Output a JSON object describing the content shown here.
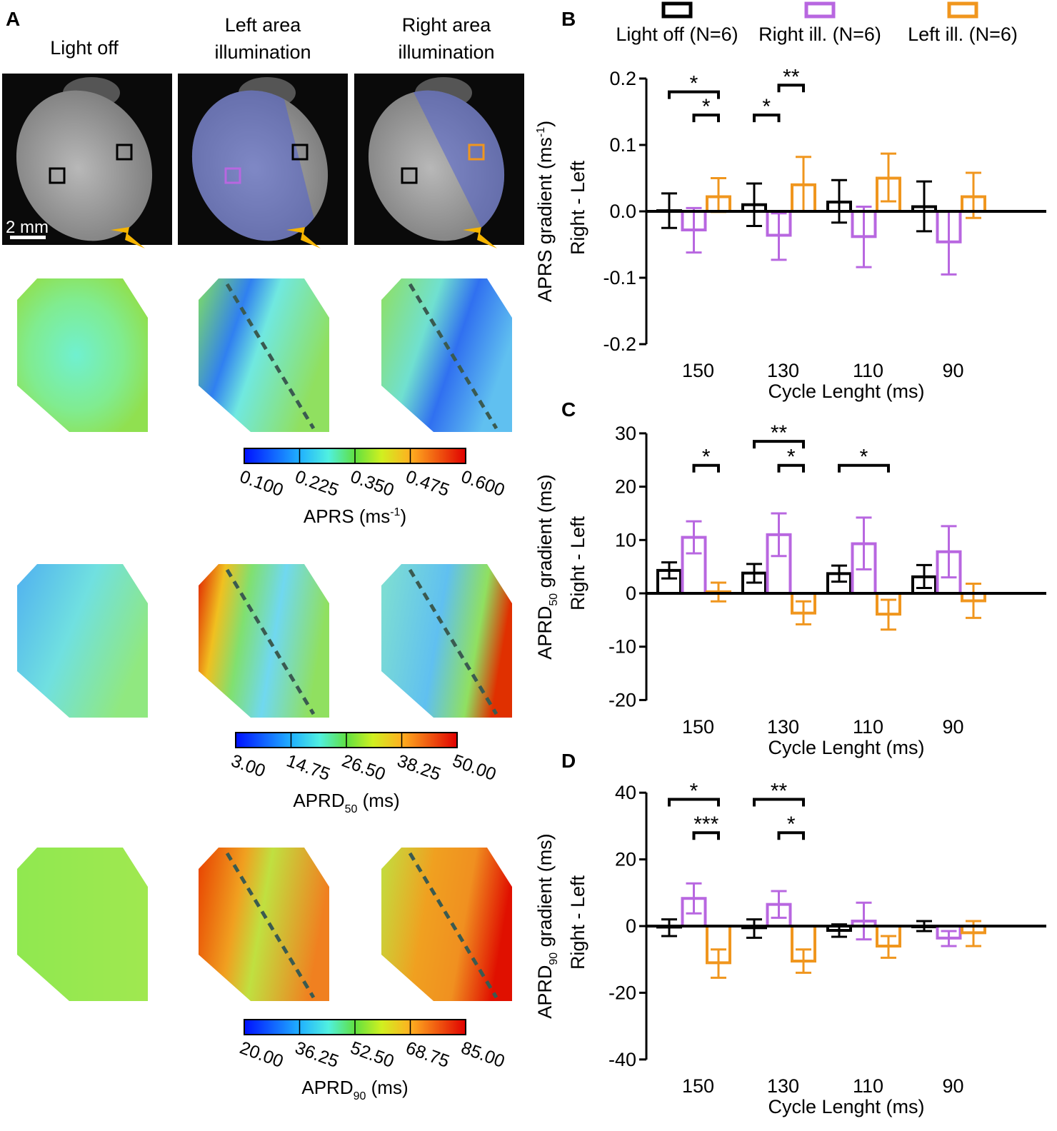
{
  "panel_a": {
    "letter": "A",
    "columns": [
      {
        "title_lines": [
          "Light off"
        ]
      },
      {
        "title_lines": [
          "Left area",
          "illumination"
        ]
      },
      {
        "title_lines": [
          "Right area",
          "illumination"
        ]
      }
    ],
    "scale_bar": "2 mm",
    "colorbars": [
      {
        "ticks": [
          "0.100",
          "0.225",
          "0.350",
          "0.475",
          "0.600"
        ],
        "label": "APRS (ms",
        "label_sup": "-1",
        "label_end": ")"
      },
      {
        "ticks": [
          "3.00",
          "14.75",
          "26.50",
          "38.25",
          "50.00"
        ],
        "label": "APRD",
        "label_sub": "50",
        "label_end": " (ms)"
      },
      {
        "ticks": [
          "20.00",
          "36.25",
          "52.50",
          "68.75",
          "85.00"
        ],
        "label": "APRD",
        "label_sub": "90",
        "label_end": " (ms)"
      }
    ]
  },
  "colors": {
    "light_off": "#000000",
    "right_ill": "#b867e0",
    "left_ill": "#f0961e",
    "dots": "#aaaaaa"
  },
  "legend": [
    "Light off (N=6)",
    "Right ill. (N=6)",
    "Left ill. (N=6)"
  ],
  "chart_data": [
    {
      "panel": "B",
      "type": "bar",
      "categories": [
        "150",
        "130",
        "110",
        "90"
      ],
      "xlabel": "Cycle Lenght (ms)",
      "ylabel_lines": [
        "APRS gradient (ms",
        "Right - Left"
      ],
      "ylabel_sup": "-1",
      "ylabel_end": ")",
      "ylim": [
        -0.2,
        0.2
      ],
      "yticks": [
        "0.2",
        "0.1",
        "0.0",
        "-0.1",
        "-0.2"
      ],
      "ytick_values": [
        0.2,
        0.1,
        0.0,
        -0.1,
        -0.2
      ],
      "series": [
        {
          "name": "Light off (N=6)",
          "values": [
            0.001,
            0.01,
            0.014,
            0.007
          ],
          "err_high": [
            0.027,
            0.042,
            0.047,
            0.045
          ],
          "err_low": [
            -0.025,
            -0.022,
            -0.017,
            -0.03
          ]
        },
        {
          "name": "Right ill. (N=6)",
          "values": [
            -0.028,
            -0.036,
            -0.038,
            -0.046
          ],
          "err_high": [
            0.005,
            -0.003,
            0.007,
            0.0
          ],
          "err_low": [
            -0.062,
            -0.073,
            -0.084,
            -0.095
          ]
        },
        {
          "name": "Left ill. (N=6)",
          "values": [
            0.022,
            0.04,
            0.05,
            0.022
          ],
          "err_high": [
            0.05,
            0.082,
            0.087,
            0.058
          ],
          "err_low": [
            -0.001,
            0.0,
            0.015,
            -0.01
          ]
        }
      ],
      "significance": [
        {
          "category": 0,
          "from": 0,
          "to": 2,
          "level": 0.18,
          "label": "*"
        },
        {
          "category": 0,
          "from": 1,
          "to": 2,
          "level": 0.145,
          "label": "*"
        },
        {
          "category": 1,
          "from": 0,
          "to": 1,
          "level": 0.145,
          "label": "*"
        },
        {
          "category": 1,
          "from": 1,
          "to": 2,
          "level": 0.19,
          "label": "**"
        }
      ]
    },
    {
      "panel": "C",
      "type": "bar",
      "categories": [
        "150",
        "130",
        "110",
        "90"
      ],
      "xlabel": "Cycle Lenght (ms)",
      "ylabel_lines": [
        "APRD",
        "Right - Left"
      ],
      "ylabel_sub": "50",
      "ylabel_end": " gradient (ms)",
      "ylim": [
        -20,
        30
      ],
      "yticks": [
        "30",
        "20",
        "10",
        "0",
        "-10",
        "-20"
      ],
      "ytick_values": [
        30,
        20,
        10,
        0,
        -10,
        -20
      ],
      "series": [
        {
          "name": "Light off (N=6)",
          "values": [
            4.3,
            3.8,
            3.7,
            3.1
          ],
          "err_high": [
            5.8,
            5.5,
            5.2,
            5.3
          ],
          "err_low": [
            2.8,
            2.0,
            2.2,
            1.0
          ]
        },
        {
          "name": "Right ill. (N=6)",
          "values": [
            10.5,
            11.0,
            9.3,
            7.8
          ],
          "err_high": [
            13.5,
            15.0,
            14.2,
            12.6
          ],
          "err_low": [
            7.5,
            7.0,
            4.5,
            3.0
          ]
        },
        {
          "name": "Left ill. (N=6)",
          "values": [
            0.3,
            -3.7,
            -3.9,
            -1.4
          ],
          "err_high": [
            2.0,
            -1.5,
            -1.2,
            1.8
          ],
          "err_low": [
            -1.5,
            -5.8,
            -6.8,
            -4.6
          ]
        }
      ],
      "significance": [
        {
          "category": 0,
          "from": 1,
          "to": 2,
          "level": 24,
          "label": "*"
        },
        {
          "category": 1,
          "from": 0,
          "to": 2,
          "level": 28.5,
          "label": "**"
        },
        {
          "category": 1,
          "from": 1,
          "to": 2,
          "level": 24,
          "label": "*"
        },
        {
          "category": 2,
          "from": 0,
          "to": 2,
          "level": 24,
          "label": "*"
        }
      ]
    },
    {
      "panel": "D",
      "type": "bar",
      "categories": [
        "150",
        "130",
        "110",
        "90"
      ],
      "xlabel": "Cycle Lenght (ms)",
      "ylabel_lines": [
        "APRD",
        "Right - Left"
      ],
      "ylabel_sub": "90",
      "ylabel_end": " gradient (ms)",
      "ylim": [
        -40,
        40
      ],
      "yticks": [
        "40",
        "20",
        "0",
        "-20",
        "-40"
      ],
      "ytick_values": [
        40,
        20,
        0,
        -20,
        -40
      ],
      "series": [
        {
          "name": "Light off (N=6)",
          "values": [
            -0.3,
            -0.5,
            -1.3,
            0.0
          ],
          "err_high": [
            2.0,
            2.0,
            0.5,
            1.5
          ],
          "err_low": [
            -3.0,
            -3.5,
            -3.2,
            -1.5
          ]
        },
        {
          "name": "Right ill. (N=6)",
          "values": [
            8.3,
            6.5,
            1.5,
            -3.6
          ],
          "err_high": [
            12.8,
            10.5,
            7.0,
            -1.5
          ],
          "err_low": [
            3.8,
            2.5,
            -4.0,
            -6.0
          ]
        },
        {
          "name": "Left ill. (N=6)",
          "values": [
            -11.0,
            -10.5,
            -6.0,
            -2.0
          ],
          "err_high": [
            -7.0,
            -7.0,
            -3.0,
            1.5
          ],
          "err_low": [
            -15.5,
            -14.0,
            -9.5,
            -6.0
          ]
        }
      ],
      "significance": [
        {
          "category": 0,
          "from": 0,
          "to": 2,
          "level": 38,
          "label": "*"
        },
        {
          "category": 0,
          "from": 1,
          "to": 2,
          "level": 28,
          "label": "***"
        },
        {
          "category": 1,
          "from": 0,
          "to": 2,
          "level": 38,
          "label": "**"
        },
        {
          "category": 1,
          "from": 1,
          "to": 2,
          "level": 28,
          "label": "*"
        }
      ]
    }
  ]
}
